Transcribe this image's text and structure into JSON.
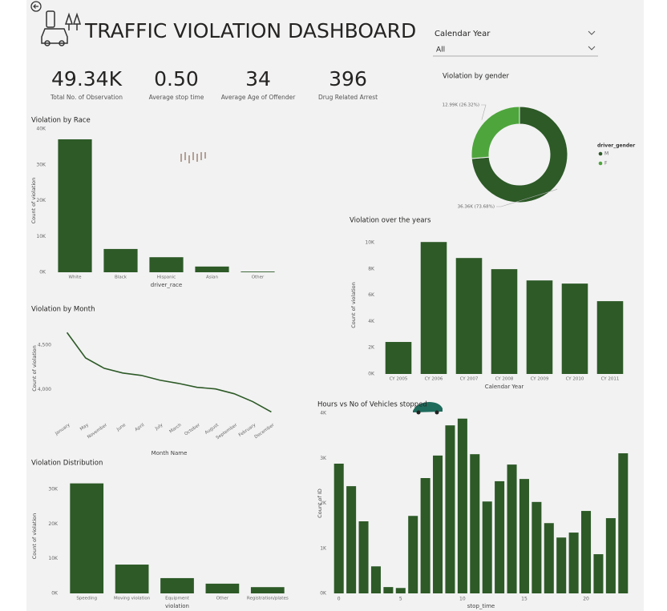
{
  "header": {
    "title": "TRAFFIC VIOLATION DASHBOARD"
  },
  "slicer": {
    "label": "Calendar Year",
    "value": "All"
  },
  "kpis": [
    {
      "value": "49.34K",
      "label": "Total No. of Observation"
    },
    {
      "value": "0.50",
      "label": "Average stop time"
    },
    {
      "value": "34",
      "label": "Average Age of Offender"
    },
    {
      "value": "396",
      "label": "Drug Related Arrest"
    }
  ],
  "chart_data": [
    {
      "type": "bar",
      "title": "Violation by Race",
      "x_label": "driver_race",
      "y_label": "Count of violation",
      "categories": [
        "White",
        "Black",
        "Hispanic",
        "Asian",
        "Other"
      ],
      "values": [
        37100,
        6500,
        4200,
        1600,
        200
      ],
      "color": "#2d5a27",
      "ylim": [
        0,
        40000
      ],
      "yticks": [
        {
          "value": 0,
          "label": "0K"
        },
        {
          "value": 10000,
          "label": "10K"
        },
        {
          "value": 20000,
          "label": "20K"
        },
        {
          "value": 30000,
          "label": "30K"
        },
        {
          "value": 40000,
          "label": "40K"
        }
      ],
      "grid": false
    },
    {
      "type": "pie",
      "title": "Violation by gender",
      "legend_title": "driver_gender",
      "categories": [
        "M",
        "F"
      ],
      "values": [
        36360,
        12990
      ],
      "value_labels": [
        "36.36K (73.68%)",
        "12.99K (26.32%)"
      ],
      "colors": [
        "#2d5a27",
        "#4ea53c"
      ],
      "legend": "right"
    },
    {
      "type": "bar",
      "title": "Violation over the years",
      "x_label": "Calendar Year",
      "y_label": "Count of violation",
      "categories": [
        "CY 2005",
        "CY 2006",
        "CY 2007",
        "CY 2008",
        "CY 2009",
        "CY 2010",
        "CY 2011"
      ],
      "values": [
        2440,
        10060,
        8840,
        7990,
        7130,
        6890,
        5550
      ],
      "color": "#2d5a27",
      "ylim": [
        0,
        10500
      ],
      "yticks": [
        {
          "value": 0,
          "label": "0K"
        },
        {
          "value": 2000,
          "label": "2K"
        },
        {
          "value": 4000,
          "label": "4K"
        },
        {
          "value": 6000,
          "label": "6K"
        },
        {
          "value": 8000,
          "label": "8K"
        },
        {
          "value": 10000,
          "label": "10K"
        }
      ],
      "grid": false
    },
    {
      "type": "line",
      "title": "Violation by Month",
      "x_label": "Month Name",
      "y_label": "Count of violation",
      "categories": [
        "January",
        "May",
        "November",
        "June",
        "April",
        "July",
        "March",
        "October",
        "August",
        "September",
        "February",
        "December"
      ],
      "values": [
        4643,
        4357,
        4241,
        4188,
        4161,
        4107,
        4071,
        4027,
        4009,
        3955,
        3866,
        3750
      ],
      "color": "#2d5a27",
      "ylim": [
        3700,
        4780
      ],
      "yticks": [
        {
          "value": 4000,
          "label": "4,000"
        },
        {
          "value": 4500,
          "label": "4,500"
        }
      ],
      "grid": false
    },
    {
      "type": "bar",
      "title": "Violation Distribution",
      "x_label": "violation",
      "y_label": "Count of violation",
      "categories": [
        "Speeding",
        "Moving violation",
        "Equipment",
        "Other",
        "Registration/plates"
      ],
      "values": [
        31700,
        8300,
        4400,
        2800,
        1800
      ],
      "color": "#2d5a27",
      "ylim": [
        0,
        33000
      ],
      "yticks": [
        {
          "value": 0,
          "label": "0K"
        },
        {
          "value": 10000,
          "label": "10K"
        },
        {
          "value": 20000,
          "label": "20K"
        },
        {
          "value": 30000,
          "label": "30K"
        }
      ],
      "grid": false
    },
    {
      "type": "bar",
      "title": "Hours vs No of Vehicles stopped",
      "x_label": "stop_time",
      "y_label": "Count of ID",
      "x": [
        0,
        1,
        2,
        3,
        4,
        5,
        6,
        7,
        8,
        9,
        10,
        11,
        12,
        13,
        14,
        15,
        16,
        17,
        18,
        19,
        20,
        21,
        22,
        23
      ],
      "values": [
        2880,
        2380,
        1600,
        600,
        140,
        120,
        1720,
        2560,
        3060,
        3730,
        3880,
        3090,
        2040,
        2490,
        2860,
        2540,
        2030,
        1560,
        1240,
        1350,
        1830,
        870,
        1670,
        3110
      ],
      "color": "#2d5a27",
      "xlim": [
        -0.5,
        23.5
      ],
      "xticks": [
        0,
        5,
        10,
        15,
        20
      ],
      "ylim": [
        0,
        4000
      ],
      "yticks": [
        {
          "value": 0,
          "label": "0K"
        },
        {
          "value": 1000,
          "label": "1K"
        },
        {
          "value": 2000,
          "label": "2K"
        },
        {
          "value": 3000,
          "label": "3K"
        },
        {
          "value": 4000,
          "label": "4K"
        }
      ],
      "grid": false
    }
  ]
}
